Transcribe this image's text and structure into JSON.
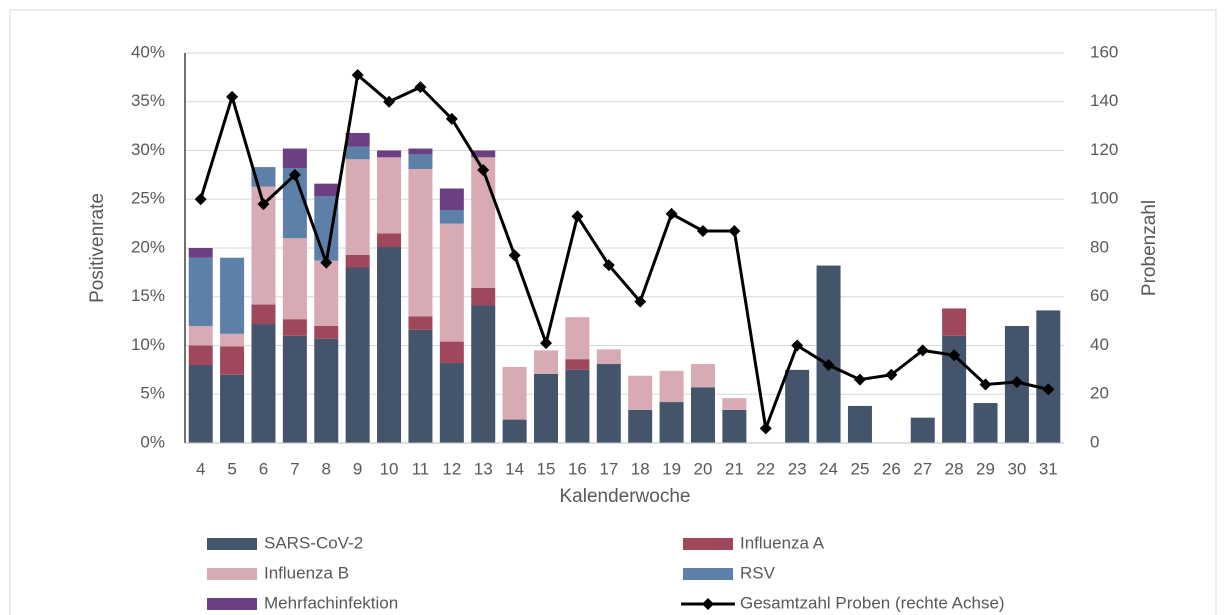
{
  "chart_data": {
    "type": "bar",
    "y_label": "Positivenrate",
    "y2_label": "Probenzahl",
    "x_label": "Kalenderwoche",
    "categories": [
      "4",
      "5",
      "6",
      "7",
      "8",
      "9",
      "10",
      "11",
      "12",
      "13",
      "14",
      "15",
      "16",
      "17",
      "18",
      "19",
      "20",
      "21",
      "22",
      "23",
      "24",
      "25",
      "26",
      "27",
      "28",
      "29",
      "30",
      "31"
    ],
    "stacked": true,
    "series": [
      {
        "name": "SARS-CoV-2",
        "color": "#44546a",
        "values": [
          8,
          7,
          12.2,
          11,
          10.7,
          18,
          20.1,
          11.6,
          8.2,
          14.1,
          2.4,
          7.1,
          7.5,
          8.1,
          3.4,
          4.2,
          5.7,
          3.4,
          0,
          7.5,
          18.2,
          3.8,
          0,
          2.6,
          11,
          4.1,
          12,
          13.6
        ]
      },
      {
        "name": "Influenza A",
        "color": "#a0485b",
        "values": [
          2,
          2.9,
          2,
          1.7,
          1.3,
          1.3,
          1.4,
          1.4,
          2.2,
          1.8,
          0,
          0,
          1.1,
          0,
          0,
          0,
          0,
          0,
          0,
          0,
          0,
          0,
          0,
          0,
          2.8,
          0,
          0,
          0
        ]
      },
      {
        "name": "Influenza B",
        "color": "#d8aab4",
        "values": [
          2,
          1.3,
          12.1,
          8.3,
          6.7,
          9.8,
          7.8,
          15.1,
          12.1,
          13.4,
          5.4,
          2.4,
          4.3,
          1.5,
          3.5,
          3.2,
          2.4,
          1.2,
          0,
          0,
          0,
          0,
          0,
          0,
          0,
          0,
          0,
          0
        ]
      },
      {
        "name": "RSV",
        "color": "#5c80a8",
        "values": [
          7,
          7.8,
          2,
          7.2,
          6.6,
          1.3,
          0,
          1.5,
          1.4,
          0,
          0,
          0,
          0,
          0,
          0,
          0,
          0,
          0,
          0,
          0,
          0,
          0,
          0,
          0,
          0,
          0,
          0,
          0
        ]
      },
      {
        "name": "Mehrfachinfektion",
        "color": "#6b3f82",
        "values": [
          1,
          0,
          0,
          2,
          1.3,
          1.4,
          0.7,
          0.6,
          2.2,
          0.7,
          0,
          0,
          0,
          0,
          0,
          0,
          0,
          0,
          0,
          0,
          0,
          0,
          0,
          0,
          0,
          0,
          0,
          0
        ]
      },
      {
        "name": "Gesamtzahl Proben (rechte Achse)",
        "type": "line",
        "axis": "y2",
        "color": "#000000",
        "values": [
          100,
          142,
          98,
          110,
          74,
          151,
          140,
          146,
          133,
          112,
          77,
          41,
          93,
          73,
          58,
          94,
          87,
          87,
          6,
          40,
          32,
          26,
          28,
          38,
          36,
          24,
          25,
          22
        ]
      }
    ],
    "ylim": [
      0,
      40
    ],
    "yticks": [
      {
        "value": 0,
        "label": "0%"
      },
      {
        "value": 5,
        "label": "5%"
      },
      {
        "value": 10,
        "label": "10%"
      },
      {
        "value": 15,
        "label": "15%"
      },
      {
        "value": 20,
        "label": "20%"
      },
      {
        "value": 25,
        "label": "25%"
      },
      {
        "value": 30,
        "label": "30%"
      },
      {
        "value": 35,
        "label": "35%"
      },
      {
        "value": 40,
        "label": "40%"
      }
    ],
    "y2lim": [
      0,
      160
    ],
    "y2ticks": [
      0,
      20,
      40,
      60,
      80,
      100,
      120,
      140,
      160
    ],
    "grid": true,
    "legend": "bottom"
  }
}
